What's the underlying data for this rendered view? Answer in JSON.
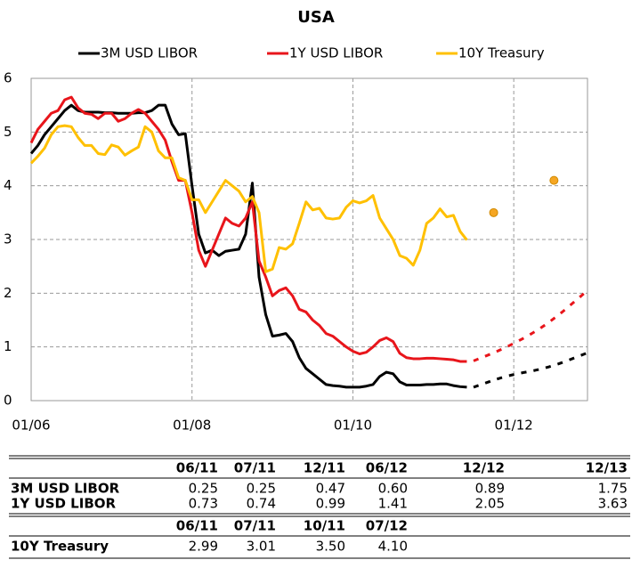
{
  "chart_data": {
    "type": "line",
    "title": "USA",
    "x": [
      "01/06",
      "02/06",
      "03/06",
      "04/06",
      "05/06",
      "06/06",
      "07/06",
      "08/06",
      "09/06",
      "10/06",
      "11/06",
      "12/06",
      "01/07",
      "02/07",
      "03/07",
      "04/07",
      "05/07",
      "06/07",
      "07/07",
      "08/07",
      "09/07",
      "10/07",
      "11/07",
      "12/07",
      "01/08",
      "02/08",
      "03/08",
      "04/08",
      "05/08",
      "06/08",
      "07/08",
      "08/08",
      "09/08",
      "10/08",
      "11/08",
      "12/08",
      "01/09",
      "02/09",
      "03/09",
      "04/09",
      "05/09",
      "06/09",
      "07/09",
      "08/09",
      "09/09",
      "10/09",
      "11/09",
      "12/09",
      "01/10",
      "02/10",
      "03/10",
      "04/10",
      "05/10",
      "06/10",
      "07/10",
      "08/10",
      "09/10",
      "10/10",
      "11/10",
      "12/10",
      "01/11",
      "02/11",
      "03/11",
      "04/11",
      "05/11",
      "06/11"
    ],
    "series": [
      {
        "name": "3M USD LIBOR",
        "color": "#000000",
        "values": [
          4.6,
          4.75,
          4.95,
          5.1,
          5.25,
          5.4,
          5.5,
          5.4,
          5.37,
          5.37,
          5.37,
          5.36,
          5.36,
          5.35,
          5.35,
          5.35,
          5.36,
          5.36,
          5.4,
          5.5,
          5.5,
          5.15,
          4.95,
          4.97,
          4.0,
          3.1,
          2.75,
          2.8,
          2.7,
          2.78,
          2.8,
          2.82,
          3.1,
          4.05,
          2.3,
          1.6,
          1.2,
          1.22,
          1.25,
          1.1,
          0.8,
          0.6,
          0.5,
          0.4,
          0.3,
          0.28,
          0.27,
          0.25,
          0.25,
          0.25,
          0.27,
          0.3,
          0.45,
          0.53,
          0.5,
          0.35,
          0.29,
          0.29,
          0.29,
          0.3,
          0.3,
          0.31,
          0.31,
          0.28,
          0.26,
          0.25
        ],
        "forecast": {
          "x": [
            "07/11",
            "12/11",
            "06/12",
            "12/12"
          ],
          "values": [
            0.25,
            0.47,
            0.6,
            0.89
          ]
        }
      },
      {
        "name": "1Y USD LIBOR",
        "color": "#e8151b",
        "values": [
          4.8,
          5.05,
          5.2,
          5.35,
          5.4,
          5.6,
          5.65,
          5.45,
          5.35,
          5.33,
          5.25,
          5.35,
          5.35,
          5.2,
          5.25,
          5.35,
          5.42,
          5.35,
          5.2,
          5.05,
          4.85,
          4.45,
          4.1,
          4.1,
          3.5,
          2.8,
          2.5,
          2.8,
          3.1,
          3.4,
          3.3,
          3.25,
          3.4,
          3.7,
          2.6,
          2.3,
          1.95,
          2.05,
          2.1,
          1.95,
          1.7,
          1.65,
          1.5,
          1.4,
          1.25,
          1.2,
          1.1,
          1.0,
          0.92,
          0.87,
          0.9,
          1.0,
          1.12,
          1.17,
          1.1,
          0.88,
          0.8,
          0.78,
          0.78,
          0.79,
          0.79,
          0.78,
          0.77,
          0.76,
          0.73,
          0.73
        ],
        "forecast": {
          "x": [
            "07/11",
            "12/11",
            "06/12",
            "12/12"
          ],
          "values": [
            0.74,
            0.99,
            1.41,
            2.05
          ]
        }
      },
      {
        "name": "10Y Treasury",
        "color": "#ffc000",
        "values": [
          4.42,
          4.55,
          4.7,
          4.95,
          5.1,
          5.12,
          5.1,
          4.9,
          4.75,
          4.75,
          4.6,
          4.58,
          4.76,
          4.72,
          4.57,
          4.65,
          4.72,
          5.1,
          5.0,
          4.65,
          4.52,
          4.52,
          4.15,
          4.1,
          3.74,
          3.74,
          3.5,
          3.7,
          3.9,
          4.1,
          4.0,
          3.9,
          3.7,
          3.8,
          3.5,
          2.4,
          2.45,
          2.85,
          2.82,
          2.92,
          3.3,
          3.7,
          3.55,
          3.58,
          3.4,
          3.38,
          3.4,
          3.6,
          3.72,
          3.68,
          3.72,
          3.82,
          3.4,
          3.2,
          3.0,
          2.7,
          2.65,
          2.52,
          2.8,
          3.3,
          3.4,
          3.57,
          3.42,
          3.45,
          3.15,
          2.99
        ],
        "points": {
          "x": [
            "10/11",
            "07/12"
          ],
          "values": [
            3.5,
            4.1
          ],
          "color": "#f5a623"
        }
      }
    ],
    "xlim": [
      "01/06",
      "12/12"
    ],
    "xticks": [
      "01/06",
      "01/08",
      "01/10",
      "01/12"
    ],
    "ylim": [
      0,
      6
    ],
    "yticks": [
      0,
      1,
      2,
      3,
      4,
      5,
      6
    ],
    "grid": true,
    "legend": "top"
  },
  "table": {
    "sections": [
      {
        "header": [
          "06/11",
          "07/11",
          "12/11",
          "06/12",
          "12/12",
          "12/13"
        ],
        "rows": [
          {
            "label": "3M USD LIBOR",
            "values": [
              "0.25",
              "0.25",
              "0.47",
              "0.60",
              "0.89",
              "1.75"
            ]
          },
          {
            "label": "1Y USD LIBOR",
            "values": [
              "0.73",
              "0.74",
              "0.99",
              "1.41",
              "2.05",
              "3.63"
            ]
          }
        ]
      },
      {
        "header": [
          "06/11",
          "07/11",
          "10/11",
          "07/12"
        ],
        "rows": [
          {
            "label": "10Y Treasury",
            "values": [
              "2.99",
              "3.01",
              "3.50",
              "4.10"
            ]
          }
        ]
      }
    ]
  }
}
